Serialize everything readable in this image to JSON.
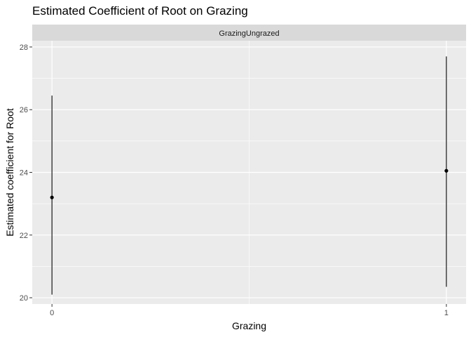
{
  "chart_data": {
    "type": "scatter",
    "title": "Estimated Coefficient of Root on Grazing",
    "facet_label": "GrazingUngrazed",
    "xlabel": "Grazing",
    "ylabel": "Estimated coefficient for Root",
    "x_ticks": [
      0,
      1
    ],
    "y_ticks": [
      20,
      22,
      24,
      26,
      28
    ],
    "xlim": [
      -0.05,
      1.05
    ],
    "ylim": [
      19.8,
      28.2
    ],
    "grid": true,
    "points": [
      {
        "x": 0,
        "y": 23.2,
        "lower": 20.1,
        "upper": 26.45
      },
      {
        "x": 1,
        "y": 24.05,
        "lower": 20.35,
        "upper": 27.7
      }
    ],
    "colors": {
      "panel_bg": "#ebebeb",
      "strip_bg": "#d9d9d9",
      "grid": "#ffffff",
      "mark": "#000000"
    }
  }
}
